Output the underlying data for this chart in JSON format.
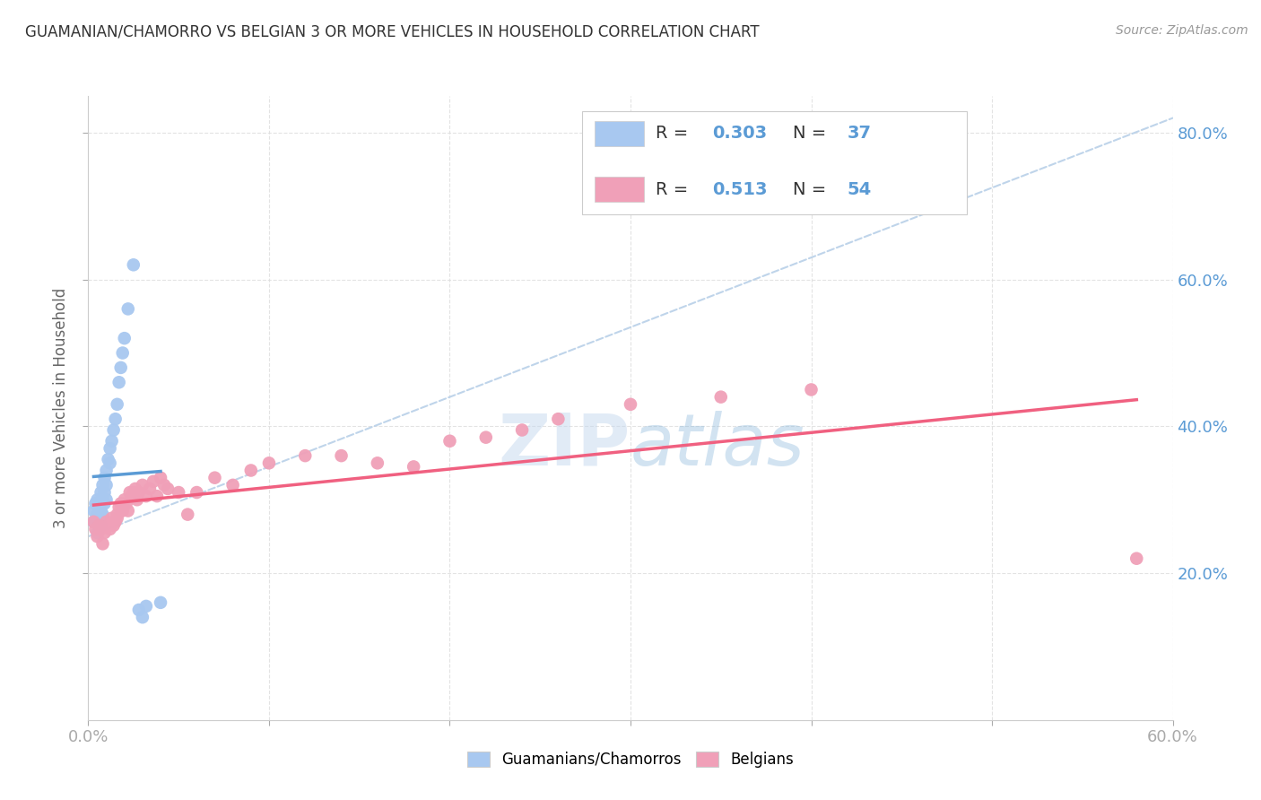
{
  "title": "GUAMANIAN/CHAMORRO VS BELGIAN 3 OR MORE VEHICLES IN HOUSEHOLD CORRELATION CHART",
  "source": "Source: ZipAtlas.com",
  "ylabel": "3 or more Vehicles in Household",
  "xlim": [
    0.0,
    0.6
  ],
  "ylim": [
    0.0,
    0.85
  ],
  "color_blue": "#a8c8f0",
  "color_pink": "#f0a0b8",
  "line_blue": "#5b9bd5",
  "line_pink": "#f06080",
  "line_dashed_color": "#b8d0e8",
  "watermark_color": "#c8ddf0",
  "right_tick_color": "#5b9bd5",
  "guamanian_x": [
    0.003,
    0.003,
    0.004,
    0.005,
    0.005,
    0.005,
    0.006,
    0.006,
    0.007,
    0.007,
    0.007,
    0.008,
    0.008,
    0.008,
    0.009,
    0.009,
    0.009,
    0.01,
    0.01,
    0.01,
    0.011,
    0.012,
    0.012,
    0.013,
    0.014,
    0.015,
    0.016,
    0.017,
    0.018,
    0.019,
    0.02,
    0.022,
    0.025,
    0.028,
    0.03,
    0.032,
    0.04
  ],
  "guamanian_y": [
    0.285,
    0.27,
    0.295,
    0.3,
    0.28,
    0.255,
    0.29,
    0.275,
    0.31,
    0.285,
    0.265,
    0.32,
    0.3,
    0.28,
    0.33,
    0.31,
    0.295,
    0.34,
    0.32,
    0.3,
    0.355,
    0.37,
    0.35,
    0.38,
    0.395,
    0.41,
    0.43,
    0.46,
    0.48,
    0.5,
    0.52,
    0.56,
    0.62,
    0.15,
    0.14,
    0.155,
    0.16
  ],
  "belgian_x": [
    0.003,
    0.004,
    0.005,
    0.006,
    0.007,
    0.008,
    0.009,
    0.01,
    0.011,
    0.012,
    0.013,
    0.014,
    0.015,
    0.016,
    0.016,
    0.017,
    0.018,
    0.019,
    0.02,
    0.021,
    0.022,
    0.023,
    0.024,
    0.025,
    0.026,
    0.027,
    0.028,
    0.03,
    0.032,
    0.034,
    0.036,
    0.038,
    0.04,
    0.042,
    0.044,
    0.05,
    0.055,
    0.06,
    0.07,
    0.08,
    0.09,
    0.1,
    0.12,
    0.14,
    0.16,
    0.18,
    0.2,
    0.22,
    0.24,
    0.26,
    0.3,
    0.35,
    0.4,
    0.58
  ],
  "belgian_y": [
    0.27,
    0.26,
    0.25,
    0.265,
    0.26,
    0.24,
    0.255,
    0.27,
    0.265,
    0.26,
    0.275,
    0.265,
    0.27,
    0.28,
    0.275,
    0.29,
    0.295,
    0.285,
    0.3,
    0.295,
    0.285,
    0.31,
    0.305,
    0.31,
    0.315,
    0.3,
    0.31,
    0.32,
    0.305,
    0.315,
    0.325,
    0.305,
    0.33,
    0.32,
    0.315,
    0.31,
    0.28,
    0.31,
    0.33,
    0.32,
    0.34,
    0.35,
    0.36,
    0.36,
    0.35,
    0.345,
    0.38,
    0.385,
    0.395,
    0.41,
    0.43,
    0.44,
    0.45,
    0.22
  ]
}
